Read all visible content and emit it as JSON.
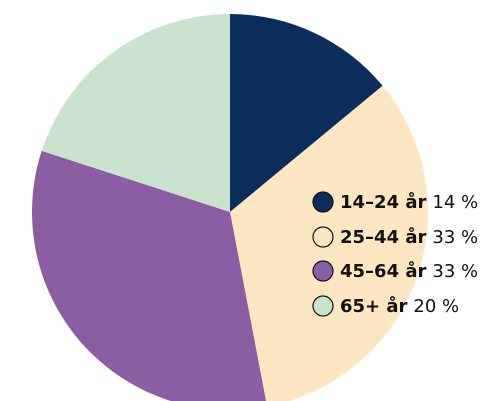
{
  "chart_data": {
    "type": "pie",
    "categories": [
      "14–24 år",
      "25–44 år",
      "45–64 år",
      "65+ år"
    ],
    "values": [
      14,
      33,
      33,
      20
    ],
    "value_labels": [
      "14 %",
      "33 %",
      "33 %",
      "20 %"
    ],
    "colors": [
      "#0b2d5b",
      "#fde7c3",
      "#8b5ea3",
      "#c9e3cf"
    ]
  }
}
